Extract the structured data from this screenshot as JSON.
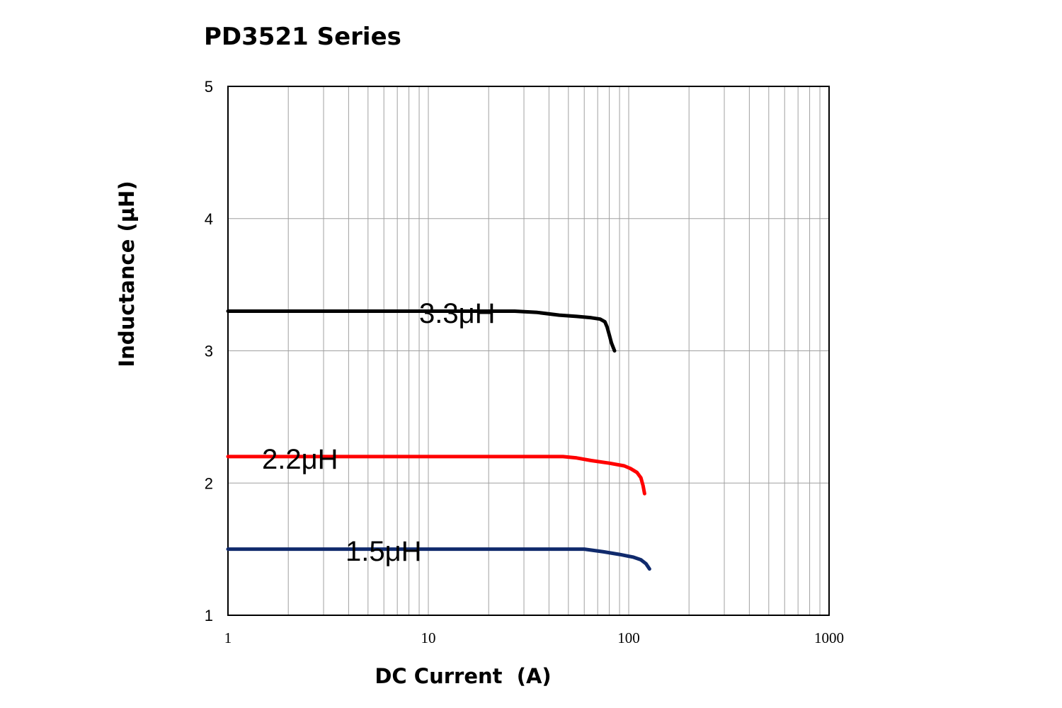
{
  "chart_data": {
    "type": "line",
    "title": "PD3521 Series",
    "xlabel": "DC Current  (A)",
    "ylabel": "Inductance (μH)",
    "xscale": "log",
    "xlim": [
      1,
      1000
    ],
    "ylim": [
      1,
      5
    ],
    "xticks": [
      "1",
      "10",
      "100",
      "1000"
    ],
    "yticks": [
      "1",
      "2",
      "3",
      "4",
      "5"
    ],
    "grid": true,
    "series": [
      {
        "name": "3.3μH",
        "color": "#000000",
        "x": [
          1,
          5,
          10,
          20,
          27,
          35,
          45,
          55,
          65,
          72,
          76,
          78,
          80,
          82,
          85
        ],
        "y": [
          3.3,
          3.3,
          3.3,
          3.3,
          3.3,
          3.29,
          3.27,
          3.26,
          3.25,
          3.24,
          3.22,
          3.18,
          3.12,
          3.06,
          3.0
        ]
      },
      {
        "name": "2.2μH",
        "color": "#ff0000",
        "x": [
          1,
          10,
          30,
          47,
          55,
          65,
          80,
          95,
          102,
          110,
          115,
          118,
          120
        ],
        "y": [
          2.2,
          2.2,
          2.2,
          2.2,
          2.19,
          2.17,
          2.15,
          2.13,
          2.11,
          2.08,
          2.04,
          1.98,
          1.92
        ]
      },
      {
        "name": "1.5μH",
        "color": "#102a6c",
        "x": [
          1,
          10,
          30,
          55,
          60,
          75,
          90,
          105,
          115,
          122,
          127
        ],
        "y": [
          1.5,
          1.5,
          1.5,
          1.5,
          1.5,
          1.48,
          1.46,
          1.44,
          1.42,
          1.39,
          1.35
        ]
      }
    ]
  }
}
